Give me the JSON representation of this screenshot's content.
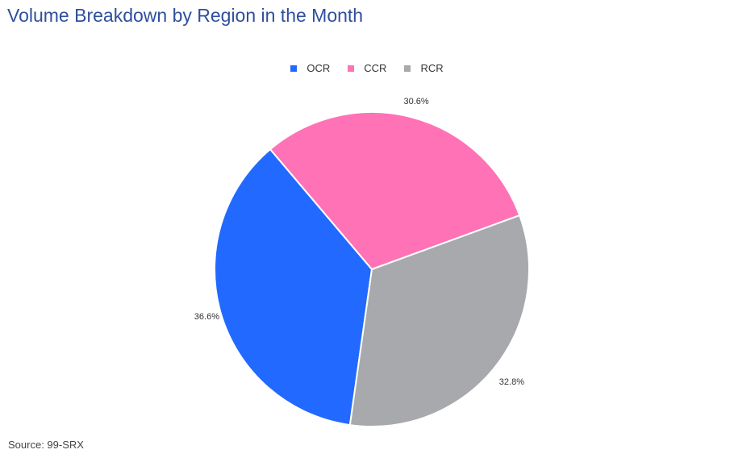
{
  "title": "Volume Breakdown by Region in the Month",
  "source": "Source: 99-SRX",
  "chart_data": {
    "type": "pie",
    "categories": [
      "OCR",
      "CCR",
      "RCR"
    ],
    "values": [
      36.6,
      30.6,
      32.8
    ],
    "labels": [
      "36.6%",
      "30.6%",
      "32.8%"
    ],
    "colors": [
      "#2269ff",
      "#ff72b6",
      "#a8a9ad"
    ],
    "legend_position": "top-center"
  }
}
